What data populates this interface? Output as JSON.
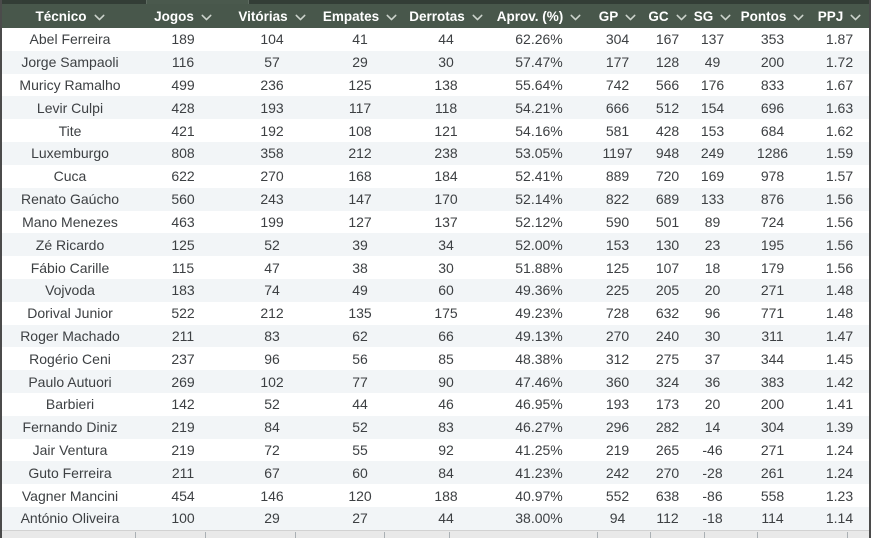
{
  "table": {
    "columns": [
      {
        "label": "Técnico"
      },
      {
        "label": "Jogos"
      },
      {
        "label": "Vitórias"
      },
      {
        "label": "Empates"
      },
      {
        "label": "Derrotas"
      },
      {
        "label": "Aprov. (%)"
      },
      {
        "label": "GP"
      },
      {
        "label": "GC"
      },
      {
        "label": "SG"
      },
      {
        "label": "Pontos"
      },
      {
        "label": "PPJ"
      }
    ],
    "sort_icon": "chevron-down",
    "rows": [
      [
        "Abel Ferreira",
        "189",
        "104",
        "41",
        "44",
        "62.26%",
        "304",
        "167",
        "137",
        "353",
        "1.87"
      ],
      [
        "Jorge Sampaoli",
        "116",
        "57",
        "29",
        "30",
        "57.47%",
        "177",
        "128",
        "49",
        "200",
        "1.72"
      ],
      [
        "Muricy Ramalho",
        "499",
        "236",
        "125",
        "138",
        "55.64%",
        "742",
        "566",
        "176",
        "833",
        "1.67"
      ],
      [
        "Levir Culpi",
        "428",
        "193",
        "117",
        "118",
        "54.21%",
        "666",
        "512",
        "154",
        "696",
        "1.63"
      ],
      [
        "Tite",
        "421",
        "192",
        "108",
        "121",
        "54.16%",
        "581",
        "428",
        "153",
        "684",
        "1.62"
      ],
      [
        "Luxemburgo",
        "808",
        "358",
        "212",
        "238",
        "53.05%",
        "1197",
        "948",
        "249",
        "1286",
        "1.59"
      ],
      [
        "Cuca",
        "622",
        "270",
        "168",
        "184",
        "52.41%",
        "889",
        "720",
        "169",
        "978",
        "1.57"
      ],
      [
        "Renato Gaúcho",
        "560",
        "243",
        "147",
        "170",
        "52.14%",
        "822",
        "689",
        "133",
        "876",
        "1.56"
      ],
      [
        "Mano Menezes",
        "463",
        "199",
        "127",
        "137",
        "52.12%",
        "590",
        "501",
        "89",
        "724",
        "1.56"
      ],
      [
        "Zé Ricardo",
        "125",
        "52",
        "39",
        "34",
        "52.00%",
        "153",
        "130",
        "23",
        "195",
        "1.56"
      ],
      [
        "Fábio Carille",
        "115",
        "47",
        "38",
        "30",
        "51.88%",
        "125",
        "107",
        "18",
        "179",
        "1.56"
      ],
      [
        "Vojvoda",
        "183",
        "74",
        "49",
        "60",
        "49.36%",
        "225",
        "205",
        "20",
        "271",
        "1.48"
      ],
      [
        "Dorival Junior",
        "522",
        "212",
        "135",
        "175",
        "49.23%",
        "728",
        "632",
        "96",
        "771",
        "1.48"
      ],
      [
        "Roger Machado",
        "211",
        "83",
        "62",
        "66",
        "49.13%",
        "270",
        "240",
        "30",
        "311",
        "1.47"
      ],
      [
        "Rogério Ceni",
        "237",
        "96",
        "56",
        "85",
        "48.38%",
        "312",
        "275",
        "37",
        "344",
        "1.45"
      ],
      [
        "Paulo Autuori",
        "269",
        "102",
        "77",
        "90",
        "47.46%",
        "360",
        "324",
        "36",
        "383",
        "1.42"
      ],
      [
        "Barbieri",
        "142",
        "52",
        "44",
        "46",
        "46.95%",
        "193",
        "173",
        "20",
        "200",
        "1.41"
      ],
      [
        "Fernando Diniz",
        "219",
        "84",
        "52",
        "83",
        "46.27%",
        "296",
        "282",
        "14",
        "304",
        "1.39"
      ],
      [
        "Jair Ventura",
        "219",
        "72",
        "55",
        "92",
        "41.25%",
        "219",
        "265",
        "-46",
        "271",
        "1.24"
      ],
      [
        "Guto Ferreira",
        "211",
        "67",
        "60",
        "84",
        "41.23%",
        "242",
        "270",
        "-28",
        "261",
        "1.24"
      ],
      [
        "Vagner Mancini",
        "454",
        "146",
        "120",
        "188",
        "40.97%",
        "552",
        "638",
        "-86",
        "558",
        "1.23"
      ],
      [
        "António Oliveira",
        "100",
        "29",
        "27",
        "44",
        "38.00%",
        "94",
        "112",
        "-18",
        "114",
        "1.14"
      ]
    ]
  },
  "colors": {
    "header_bg": "#48574b",
    "header_text": "#ffffff",
    "sort_chevron": "#ccd3cc",
    "row_bg": "#ffffff",
    "row_alt_bg": "#f2f5f7",
    "row_text": "#3d4043",
    "top_edge": "#333d36",
    "bottom_edge": "#e9e9e9",
    "outer_border": "#4b4b4b"
  }
}
